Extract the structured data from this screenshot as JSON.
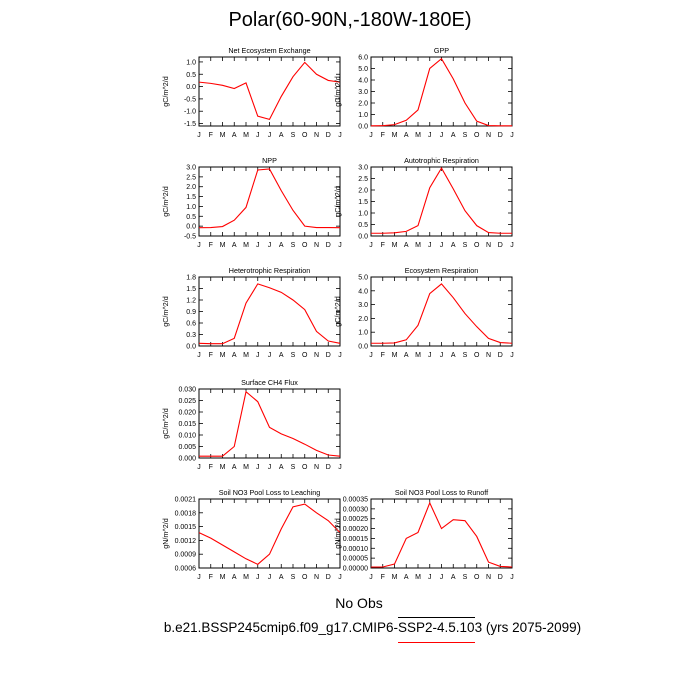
{
  "figure": {
    "title": "Polar(60-90N,-180W-180E)",
    "no_obs": "No Obs",
    "case": "b.e21.BSSP245cmip6.f09_g17.CMIP6-SSP2-4.5.103 (yrs 2075-2099)",
    "rule_colors": {
      "obs": "#000000",
      "model": "#ff0000"
    }
  },
  "chart_data": [
    {
      "type": "line",
      "title": "Net Ecosystem Exchange",
      "ylabel": "gC/m^2/d",
      "categories": [
        "J",
        "F",
        "M",
        "A",
        "M",
        "J",
        "J",
        "A",
        "S",
        "O",
        "N",
        "D",
        "J"
      ],
      "yticks": [
        "1.0",
        "0.5",
        "0.0",
        "-0.5",
        "-1.0",
        "-1.5"
      ],
      "ylim": [
        -1.6,
        1.2
      ],
      "series": [
        {
          "color": "#ff0000",
          "values": [
            0.18,
            0.13,
            0.05,
            -0.08,
            0.15,
            -1.2,
            -1.33,
            -0.4,
            0.4,
            0.98,
            0.5,
            0.25,
            0.18
          ]
        }
      ]
    },
    {
      "type": "line",
      "title": "GPP",
      "ylabel": "gC/m^2/d",
      "categories": [
        "J",
        "F",
        "M",
        "A",
        "M",
        "J",
        "J",
        "A",
        "S",
        "O",
        "N",
        "D",
        "J"
      ],
      "yticks": [
        "6.0",
        "5.0",
        "4.0",
        "3.0",
        "2.0",
        "1.0",
        "0.0"
      ],
      "ylim": [
        0,
        6
      ],
      "series": [
        {
          "color": "#ff0000",
          "values": [
            0.02,
            0.03,
            0.12,
            0.5,
            1.4,
            5.0,
            5.85,
            4.1,
            2.0,
            0.42,
            0.04,
            0.02,
            0.02
          ]
        }
      ]
    },
    {
      "type": "line",
      "title": "NPP",
      "ylabel": "gC/m^2/d",
      "categories": [
        "J",
        "F",
        "M",
        "A",
        "M",
        "J",
        "J",
        "A",
        "S",
        "O",
        "N",
        "D",
        "J"
      ],
      "yticks": [
        "3.0",
        "2.5",
        "2.0",
        "1.5",
        "1.0",
        "0.5",
        "0.0",
        "-0.5"
      ],
      "ylim": [
        -0.5,
        3.0
      ],
      "series": [
        {
          "color": "#ff0000",
          "values": [
            -0.08,
            -0.07,
            -0.02,
            0.3,
            0.95,
            2.85,
            2.9,
            1.8,
            0.8,
            0.0,
            -0.07,
            -0.07,
            -0.08
          ]
        }
      ]
    },
    {
      "type": "line",
      "title": "Autotrophic Respiration",
      "ylabel": "gC/m^2/d",
      "categories": [
        "J",
        "F",
        "M",
        "A",
        "M",
        "J",
        "J",
        "A",
        "S",
        "O",
        "N",
        "D",
        "J"
      ],
      "yticks": [
        "3.0",
        "2.5",
        "2.0",
        "1.5",
        "1.0",
        "0.5",
        "0.0"
      ],
      "ylim": [
        0,
        3.0
      ],
      "series": [
        {
          "color": "#ff0000",
          "values": [
            0.12,
            0.12,
            0.14,
            0.2,
            0.45,
            2.1,
            2.95,
            2.05,
            1.1,
            0.45,
            0.15,
            0.12,
            0.12
          ]
        }
      ]
    },
    {
      "type": "line",
      "title": "Heterotrophic Respiration",
      "ylabel": "gC/m^2/d",
      "categories": [
        "J",
        "F",
        "M",
        "A",
        "M",
        "J",
        "J",
        "A",
        "S",
        "O",
        "N",
        "D",
        "J"
      ],
      "yticks": [
        "1.8",
        "1.5",
        "1.2",
        "0.9",
        "0.6",
        "0.3",
        "0.0"
      ],
      "ylim": [
        0,
        1.8
      ],
      "series": [
        {
          "color": "#ff0000",
          "values": [
            0.07,
            0.06,
            0.06,
            0.2,
            1.12,
            1.62,
            1.52,
            1.4,
            1.2,
            0.95,
            0.38,
            0.13,
            0.07
          ]
        }
      ]
    },
    {
      "type": "line",
      "title": "Ecosystem Respiration",
      "ylabel": "gC/m^2/d",
      "categories": [
        "J",
        "F",
        "M",
        "A",
        "M",
        "J",
        "J",
        "A",
        "S",
        "O",
        "N",
        "D",
        "J"
      ],
      "yticks": [
        "5.0",
        "4.0",
        "3.0",
        "2.0",
        "1.0",
        "0.0"
      ],
      "ylim": [
        0,
        5.0
      ],
      "series": [
        {
          "color": "#ff0000",
          "values": [
            0.2,
            0.2,
            0.22,
            0.45,
            1.5,
            3.8,
            4.5,
            3.5,
            2.35,
            1.4,
            0.55,
            0.25,
            0.2
          ]
        }
      ]
    },
    {
      "type": "line",
      "title": "Surface CH4 Flux",
      "ylabel": "gC/m^2/d",
      "categories": [
        "J",
        "F",
        "M",
        "A",
        "M",
        "J",
        "J",
        "A",
        "S",
        "O",
        "N",
        "D",
        "J"
      ],
      "yticks": [
        "0.030",
        "0.025",
        "0.020",
        "0.015",
        "0.010",
        "0.005",
        "0.000"
      ],
      "ylim": [
        0,
        0.03
      ],
      "series": [
        {
          "color": "#ff0000",
          "values": [
            0.0008,
            0.0008,
            0.0008,
            0.005,
            0.0288,
            0.0245,
            0.0133,
            0.0105,
            0.0085,
            0.006,
            0.0033,
            0.0013,
            0.0008
          ]
        }
      ]
    },
    {
      "type": "line",
      "title": "Soil NO3 Pool Loss to Leaching",
      "ylabel": "gN/m^2/d",
      "categories": [
        "J",
        "F",
        "M",
        "A",
        "M",
        "J",
        "J",
        "A",
        "S",
        "O",
        "N",
        "D",
        "J"
      ],
      "yticks": [
        "0.0021",
        "0.0018",
        "0.0015",
        "0.0012",
        "0.0009",
        "0.0006"
      ],
      "ylim": [
        0.0006,
        0.0021
      ],
      "series": [
        {
          "color": "#ff0000",
          "values": [
            0.00137,
            0.00125,
            0.0011,
            0.00095,
            0.0008,
            0.00068,
            0.0009,
            0.00145,
            0.00193,
            0.00199,
            0.0018,
            0.00163,
            0.00137
          ]
        }
      ]
    },
    {
      "type": "line",
      "title": "Soil NO3 Pool Loss to Runoff",
      "ylabel": "gN/m^2/d",
      "categories": [
        "J",
        "F",
        "M",
        "A",
        "M",
        "J",
        "J",
        "A",
        "S",
        "O",
        "N",
        "D",
        "J"
      ],
      "yticks": [
        "0.00035",
        "0.00030",
        "0.00025",
        "0.00020",
        "0.00015",
        "0.00010",
        "0.00005",
        "0.00000"
      ],
      "ylim": [
        0,
        0.00035
      ],
      "series": [
        {
          "color": "#ff0000",
          "values": [
            5e-06,
            5e-06,
            2e-05,
            0.00015,
            0.00018,
            0.00033,
            0.0002,
            0.000245,
            0.00024,
            0.00016,
            3e-05,
            8e-06,
            5e-06
          ]
        }
      ]
    }
  ]
}
